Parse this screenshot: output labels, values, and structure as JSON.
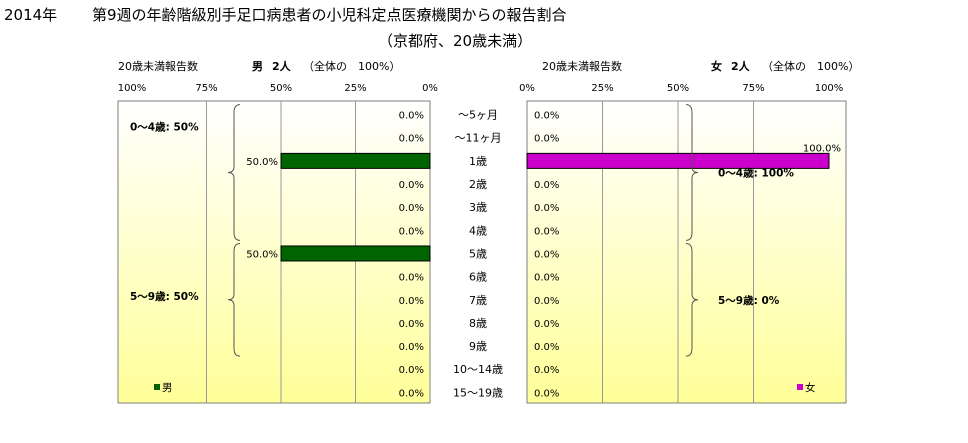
{
  "header": {
    "year": "2014年",
    "title": "第9週の年齢階級別手足口病患者の小児科定点医療機関からの報告割合",
    "subtitle": "（京都府、20歳未満）"
  },
  "colors": {
    "male": "#006400",
    "female": "#cc00cc",
    "panel_top": "#ffffff",
    "panel_bottom": "#ffff99"
  },
  "chart_data": {
    "type": "bar",
    "categories": [
      "～5ヶ月",
      "～11ヶ月",
      "1歳",
      "2歳",
      "3歳",
      "4歳",
      "5歳",
      "6歳",
      "7歳",
      "8歳",
      "9歳",
      "10～14歳",
      "15～19歳"
    ],
    "xlim": [
      0,
      100
    ],
    "tick_labels": [
      "100%",
      "75%",
      "50%",
      "25%",
      "0%",
      "25%",
      "50%",
      "75%",
      "100%"
    ],
    "series": [
      {
        "name": "男",
        "header_sex": "男",
        "header_count": "2人",
        "header_note": "（全体の　100%）",
        "axis_caption": "20歳未満報告数",
        "values": [
          0,
          0,
          50,
          0,
          0,
          0,
          50,
          0,
          0,
          0,
          0,
          0,
          0
        ],
        "value_labels": [
          "0.0%",
          "0.0%",
          "50.0%",
          "0.0%",
          "0.0%",
          "0.0%",
          "50.0%",
          "0.0%",
          "0.0%",
          "0.0%",
          "0.0%",
          "0.0%",
          "0.0%"
        ],
        "groups": [
          {
            "label": "0～4歳: 50%",
            "from": 0,
            "to": 5
          },
          {
            "label": "5～9歳: 50%",
            "from": 6,
            "to": 10
          }
        ]
      },
      {
        "name": "女",
        "header_sex": "女",
        "header_count": "2人",
        "header_note": "（全体の　100%）",
        "axis_caption": "20歳未満報告数",
        "values": [
          0,
          0,
          100,
          0,
          0,
          0,
          0,
          0,
          0,
          0,
          0,
          0,
          0
        ],
        "value_labels": [
          "0.0%",
          "0.0%",
          "100.0%",
          "0.0%",
          "0.0%",
          "0.0%",
          "0.0%",
          "0.0%",
          "0.0%",
          "0.0%",
          "0.0%",
          "0.0%",
          "0.0%"
        ],
        "groups": [
          {
            "label": "0～4歳: 100%",
            "from": 0,
            "to": 5
          },
          {
            "label": "5～9歳:  0%",
            "from": 6,
            "to": 10
          }
        ]
      }
    ]
  }
}
